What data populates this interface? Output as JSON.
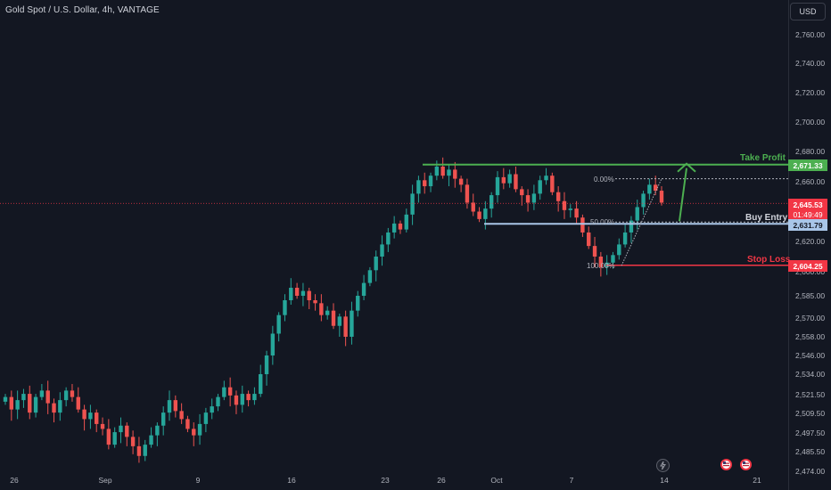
{
  "header": {
    "title": "Gold Spot / U.S. Dollar, 4h, VANTAGE",
    "currency_button": "USD"
  },
  "colors": {
    "background": "#131722",
    "up": "#26a69a",
    "down": "#ef5350",
    "take_profit": "#4caf50",
    "entry": "#a9c6e8",
    "stop_loss": "#f23645",
    "current_price": "#f23645"
  },
  "axis": {
    "y_ticks": [
      "2,760.00",
      "2,740.00",
      "2,720.00",
      "2,700.00",
      "2,680.00",
      "2,660.00",
      "2,620.00",
      "2,600.00",
      "2,585.00",
      "2,570.00",
      "2,558.00",
      "2,546.00",
      "2,534.00",
      "2,521.50",
      "2,509.50",
      "2,497.50",
      "2,485.50",
      "2,474.00"
    ],
    "x_ticks": [
      "26",
      "Sep",
      "9",
      "16",
      "23",
      "26",
      "Oct",
      "7",
      "14",
      "21"
    ]
  },
  "levels": {
    "take_profit": {
      "label": "Take Profit",
      "price": "2,671.33"
    },
    "current": {
      "price": "2,645.53",
      "countdown": "01:49:49"
    },
    "entry": {
      "label": "Buy Entry",
      "price": "2,631.79"
    },
    "stop_loss": {
      "label": "Stop Loss",
      "price": "2,604.25"
    }
  },
  "fib": {
    "top": "0.00%",
    "mid": "50.00%",
    "bottom": "100.00%"
  },
  "icons": {
    "flash": "lightning-icon",
    "flag_us_1": "us-flag-icon",
    "flag_us_2": "us-flag-icon"
  },
  "chart_data": {
    "type": "candlestick",
    "title": "Gold Spot / U.S. Dollar, 4h, VANTAGE",
    "y_range": [
      2474,
      2770
    ],
    "x_labels": [
      "26",
      "Sep",
      "9",
      "16",
      "23",
      "26",
      "Oct",
      "7",
      "14",
      "21"
    ],
    "close_path": [
      2520,
      2512,
      2518,
      2522,
      2510,
      2520,
      2524,
      2516,
      2510,
      2518,
      2524,
      2520,
      2512,
      2506,
      2510,
      2503,
      2500,
      2490,
      2498,
      2502,
      2495,
      2489,
      2483,
      2490,
      2496,
      2502,
      2510,
      2518,
      2511,
      2506,
      2500,
      2496,
      2503,
      2510,
      2514,
      2520,
      2526,
      2521,
      2515,
      2522,
      2518,
      2522,
      2534,
      2546,
      2560,
      2572,
      2582,
      2590,
      2585,
      2588,
      2582,
      2580,
      2572,
      2575,
      2565,
      2571,
      2558,
      2575,
      2585,
      2593,
      2601,
      2610,
      2618,
      2626,
      2632,
      2628,
      2638,
      2652,
      2661,
      2657,
      2664,
      2670,
      2664,
      2668,
      2662,
      2658,
      2646,
      2640,
      2635,
      2642,
      2651,
      2663,
      2659,
      2665,
      2655,
      2651,
      2646,
      2652,
      2661,
      2664,
      2653,
      2647,
      2641,
      2642,
      2636,
      2626,
      2617,
      2610,
      2603,
      2606,
      2611,
      2618,
      2626,
      2634,
      2643,
      2652,
      2658,
      2654,
      2646
    ],
    "levels": {
      "take_profit": 2671.33,
      "buy_entry": 2631.79,
      "stop_loss": 2604.25,
      "current": 2645.53
    }
  }
}
